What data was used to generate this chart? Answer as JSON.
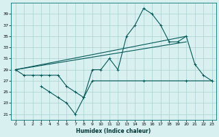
{
  "xlabel": "Humidex (Indice chaleur)",
  "x_values": [
    0,
    1,
    2,
    3,
    4,
    5,
    6,
    7,
    8,
    9,
    10,
    11,
    12,
    13,
    14,
    15,
    16,
    17,
    18,
    19,
    20,
    21,
    22,
    23
  ],
  "line1_y": [
    29,
    28,
    28,
    28,
    28,
    28,
    26,
    25,
    24,
    29,
    29,
    31,
    29,
    35,
    37,
    40,
    39,
    37,
    34,
    34,
    35,
    30,
    28,
    27
  ],
  "line2_x": [
    0,
    20
  ],
  "line2_y": [
    29,
    35
  ],
  "line3_x": [
    0,
    20
  ],
  "line3_y": [
    29,
    34
  ],
  "line4_x": [
    3,
    4,
    5,
    6,
    7,
    8,
    9,
    15,
    20,
    23
  ],
  "line4_y": [
    26,
    25,
    24,
    23,
    21,
    24,
    27,
    27,
    27,
    27
  ],
  "bg_color": "#d8f0f0",
  "grid_color": "#a8d0d0",
  "line_color": "#005555",
  "ylim": [
    20,
    41
  ],
  "xlim": [
    -0.5,
    23.5
  ],
  "yticks": [
    21,
    23,
    25,
    27,
    29,
    31,
    33,
    35,
    37,
    39
  ],
  "xticks": [
    0,
    1,
    2,
    3,
    4,
    5,
    6,
    7,
    8,
    9,
    10,
    11,
    12,
    13,
    14,
    15,
    16,
    17,
    18,
    19,
    20,
    21,
    22,
    23
  ]
}
